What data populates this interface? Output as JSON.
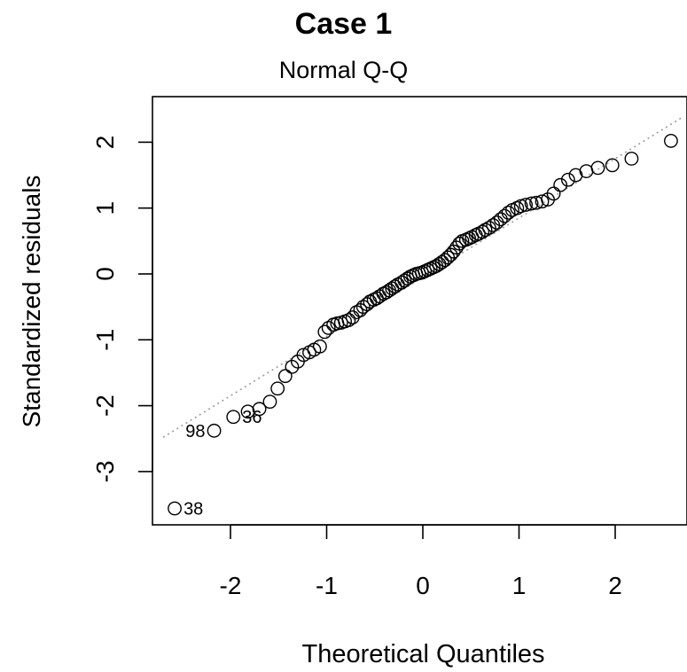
{
  "chart_data": {
    "type": "scatter",
    "title": "Case 1",
    "subtitle": "Normal Q-Q",
    "xlabel": "Theoretical Quantiles",
    "ylabel": "Standardized residuals",
    "xlim": [
      -2.7,
      2.7
    ],
    "ylim": [
      -3.8,
      2.7
    ],
    "xticks": [
      -2,
      -1,
      0,
      1,
      2
    ],
    "yticks": [
      -3,
      -2,
      -1,
      0,
      1,
      2
    ],
    "xtick_labels": [
      "-2",
      "-1",
      "0",
      "1",
      "2"
    ],
    "ytick_labels": [
      "-3",
      "-2",
      "-1",
      "0",
      "1",
      "2"
    ],
    "grid": false,
    "marker": "open-circle",
    "reference_line": {
      "style": "dotted",
      "color": "#9a9a9a",
      "slope": 0.9,
      "intercept": -0.05
    },
    "annotations": [
      {
        "text": "38",
        "x": -2.58,
        "y": -3.56
      },
      {
        "text": "98",
        "x": -2.17,
        "y": -2.38
      },
      {
        "text": "36",
        "x": -1.97,
        "y": -2.17
      }
    ],
    "points": [
      [
        -2.58,
        -3.56
      ],
      [
        -2.17,
        -2.38
      ],
      [
        -1.97,
        -2.17
      ],
      [
        -1.82,
        -2.09
      ],
      [
        -1.7,
        -2.05
      ],
      [
        -1.59,
        -1.94
      ],
      [
        -1.51,
        -1.74
      ],
      [
        -1.43,
        -1.55
      ],
      [
        -1.36,
        -1.41
      ],
      [
        -1.3,
        -1.33
      ],
      [
        -1.24,
        -1.23
      ],
      [
        -1.18,
        -1.19
      ],
      [
        -1.13,
        -1.15
      ],
      [
        -1.07,
        -1.1
      ],
      [
        -1.02,
        -0.88
      ],
      [
        -0.98,
        -0.82
      ],
      [
        -0.93,
        -0.77
      ],
      [
        -0.89,
        -0.75
      ],
      [
        -0.85,
        -0.74
      ],
      [
        -0.81,
        -0.72
      ],
      [
        -0.77,
        -0.7
      ],
      [
        -0.73,
        -0.66
      ],
      [
        -0.69,
        -0.58
      ],
      [
        -0.65,
        -0.55
      ],
      [
        -0.62,
        -0.5
      ],
      [
        -0.58,
        -0.46
      ],
      [
        -0.55,
        -0.42
      ],
      [
        -0.51,
        -0.39
      ],
      [
        -0.48,
        -0.37
      ],
      [
        -0.45,
        -0.34
      ],
      [
        -0.41,
        -0.3
      ],
      [
        -0.38,
        -0.28
      ],
      [
        -0.35,
        -0.25
      ],
      [
        -0.32,
        -0.22
      ],
      [
        -0.29,
        -0.19
      ],
      [
        -0.26,
        -0.16
      ],
      [
        -0.22,
        -0.13
      ],
      [
        -0.19,
        -0.1
      ],
      [
        -0.16,
        -0.07
      ],
      [
        -0.13,
        -0.04
      ],
      [
        -0.1,
        -0.02
      ],
      [
        -0.07,
        0.0
      ],
      [
        -0.04,
        0.01
      ],
      [
        -0.01,
        0.02
      ],
      [
        0.02,
        0.04
      ],
      [
        0.05,
        0.06
      ],
      [
        0.08,
        0.08
      ],
      [
        0.11,
        0.1
      ],
      [
        0.14,
        0.12
      ],
      [
        0.17,
        0.15
      ],
      [
        0.2,
        0.18
      ],
      [
        0.23,
        0.21
      ],
      [
        0.26,
        0.25
      ],
      [
        0.29,
        0.29
      ],
      [
        0.32,
        0.34
      ],
      [
        0.35,
        0.4
      ],
      [
        0.38,
        0.46
      ],
      [
        0.41,
        0.5
      ],
      [
        0.45,
        0.52
      ],
      [
        0.48,
        0.54
      ],
      [
        0.51,
        0.56
      ],
      [
        0.55,
        0.59
      ],
      [
        0.58,
        0.61
      ],
      [
        0.62,
        0.64
      ],
      [
        0.65,
        0.67
      ],
      [
        0.69,
        0.7
      ],
      [
        0.73,
        0.74
      ],
      [
        0.77,
        0.78
      ],
      [
        0.81,
        0.83
      ],
      [
        0.85,
        0.88
      ],
      [
        0.89,
        0.93
      ],
      [
        0.93,
        0.97
      ],
      [
        0.98,
        1.0
      ],
      [
        1.02,
        1.03
      ],
      [
        1.07,
        1.05
      ],
      [
        1.13,
        1.07
      ],
      [
        1.18,
        1.08
      ],
      [
        1.24,
        1.1
      ],
      [
        1.3,
        1.13
      ],
      [
        1.36,
        1.22
      ],
      [
        1.43,
        1.35
      ],
      [
        1.51,
        1.43
      ],
      [
        1.59,
        1.5
      ],
      [
        1.7,
        1.56
      ],
      [
        1.82,
        1.61
      ],
      [
        1.97,
        1.65
      ],
      [
        2.17,
        1.75
      ],
      [
        2.58,
        2.02
      ]
    ]
  }
}
